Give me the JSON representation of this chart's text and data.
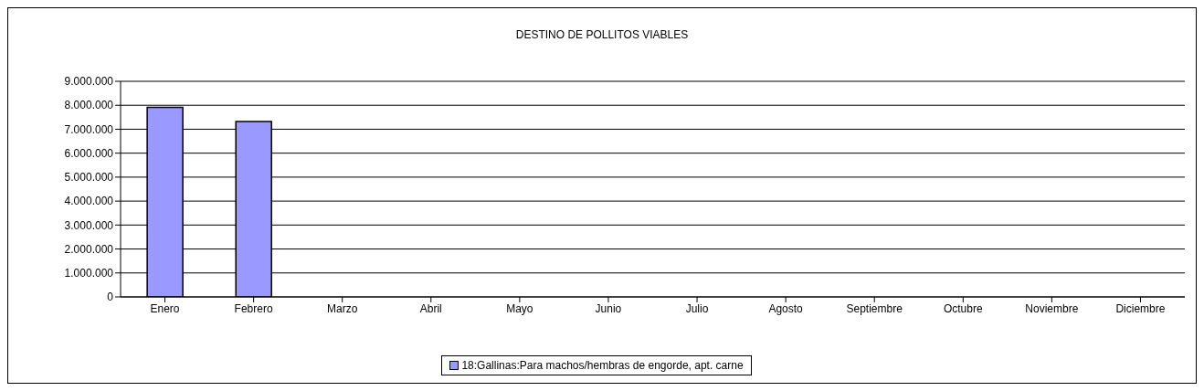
{
  "chart_data": {
    "type": "bar",
    "title": "DESTINO DE POLLITOS VIABLES",
    "categories": [
      "Enero",
      "Febrero",
      "Marzo",
      "Abril",
      "Mayo",
      "Junio",
      "Julio",
      "Agosto",
      "Septiembre",
      "Octubre",
      "Noviembre",
      "Diciembre"
    ],
    "series": [
      {
        "name": "18:Gallinas:Para machos/hembras de engorde, apt. carne",
        "color": "#9999ff",
        "values": [
          7910000,
          7320000,
          null,
          null,
          null,
          null,
          null,
          null,
          null,
          null,
          null,
          null
        ]
      }
    ],
    "ylim": [
      0,
      9000000
    ],
    "yticks": [
      0,
      {
        "value": 1000000,
        "label": "1.000.000"
      },
      {
        "value": 2000000,
        "label": "2.000.000"
      },
      {
        "value": 3000000,
        "label": "3.000.000"
      },
      {
        "value": 4000000,
        "label": "4.000.000"
      },
      {
        "value": 5000000,
        "label": "5.000.000"
      },
      {
        "value": 6000000,
        "label": "6.000.000"
      },
      {
        "value": 7000000,
        "label": "7.000.000"
      },
      {
        "value": 8000000,
        "label": "8.000.000"
      },
      {
        "value": 9000000,
        "label": "9.000.000"
      }
    ],
    "grid": "y",
    "legend": "bottom"
  }
}
